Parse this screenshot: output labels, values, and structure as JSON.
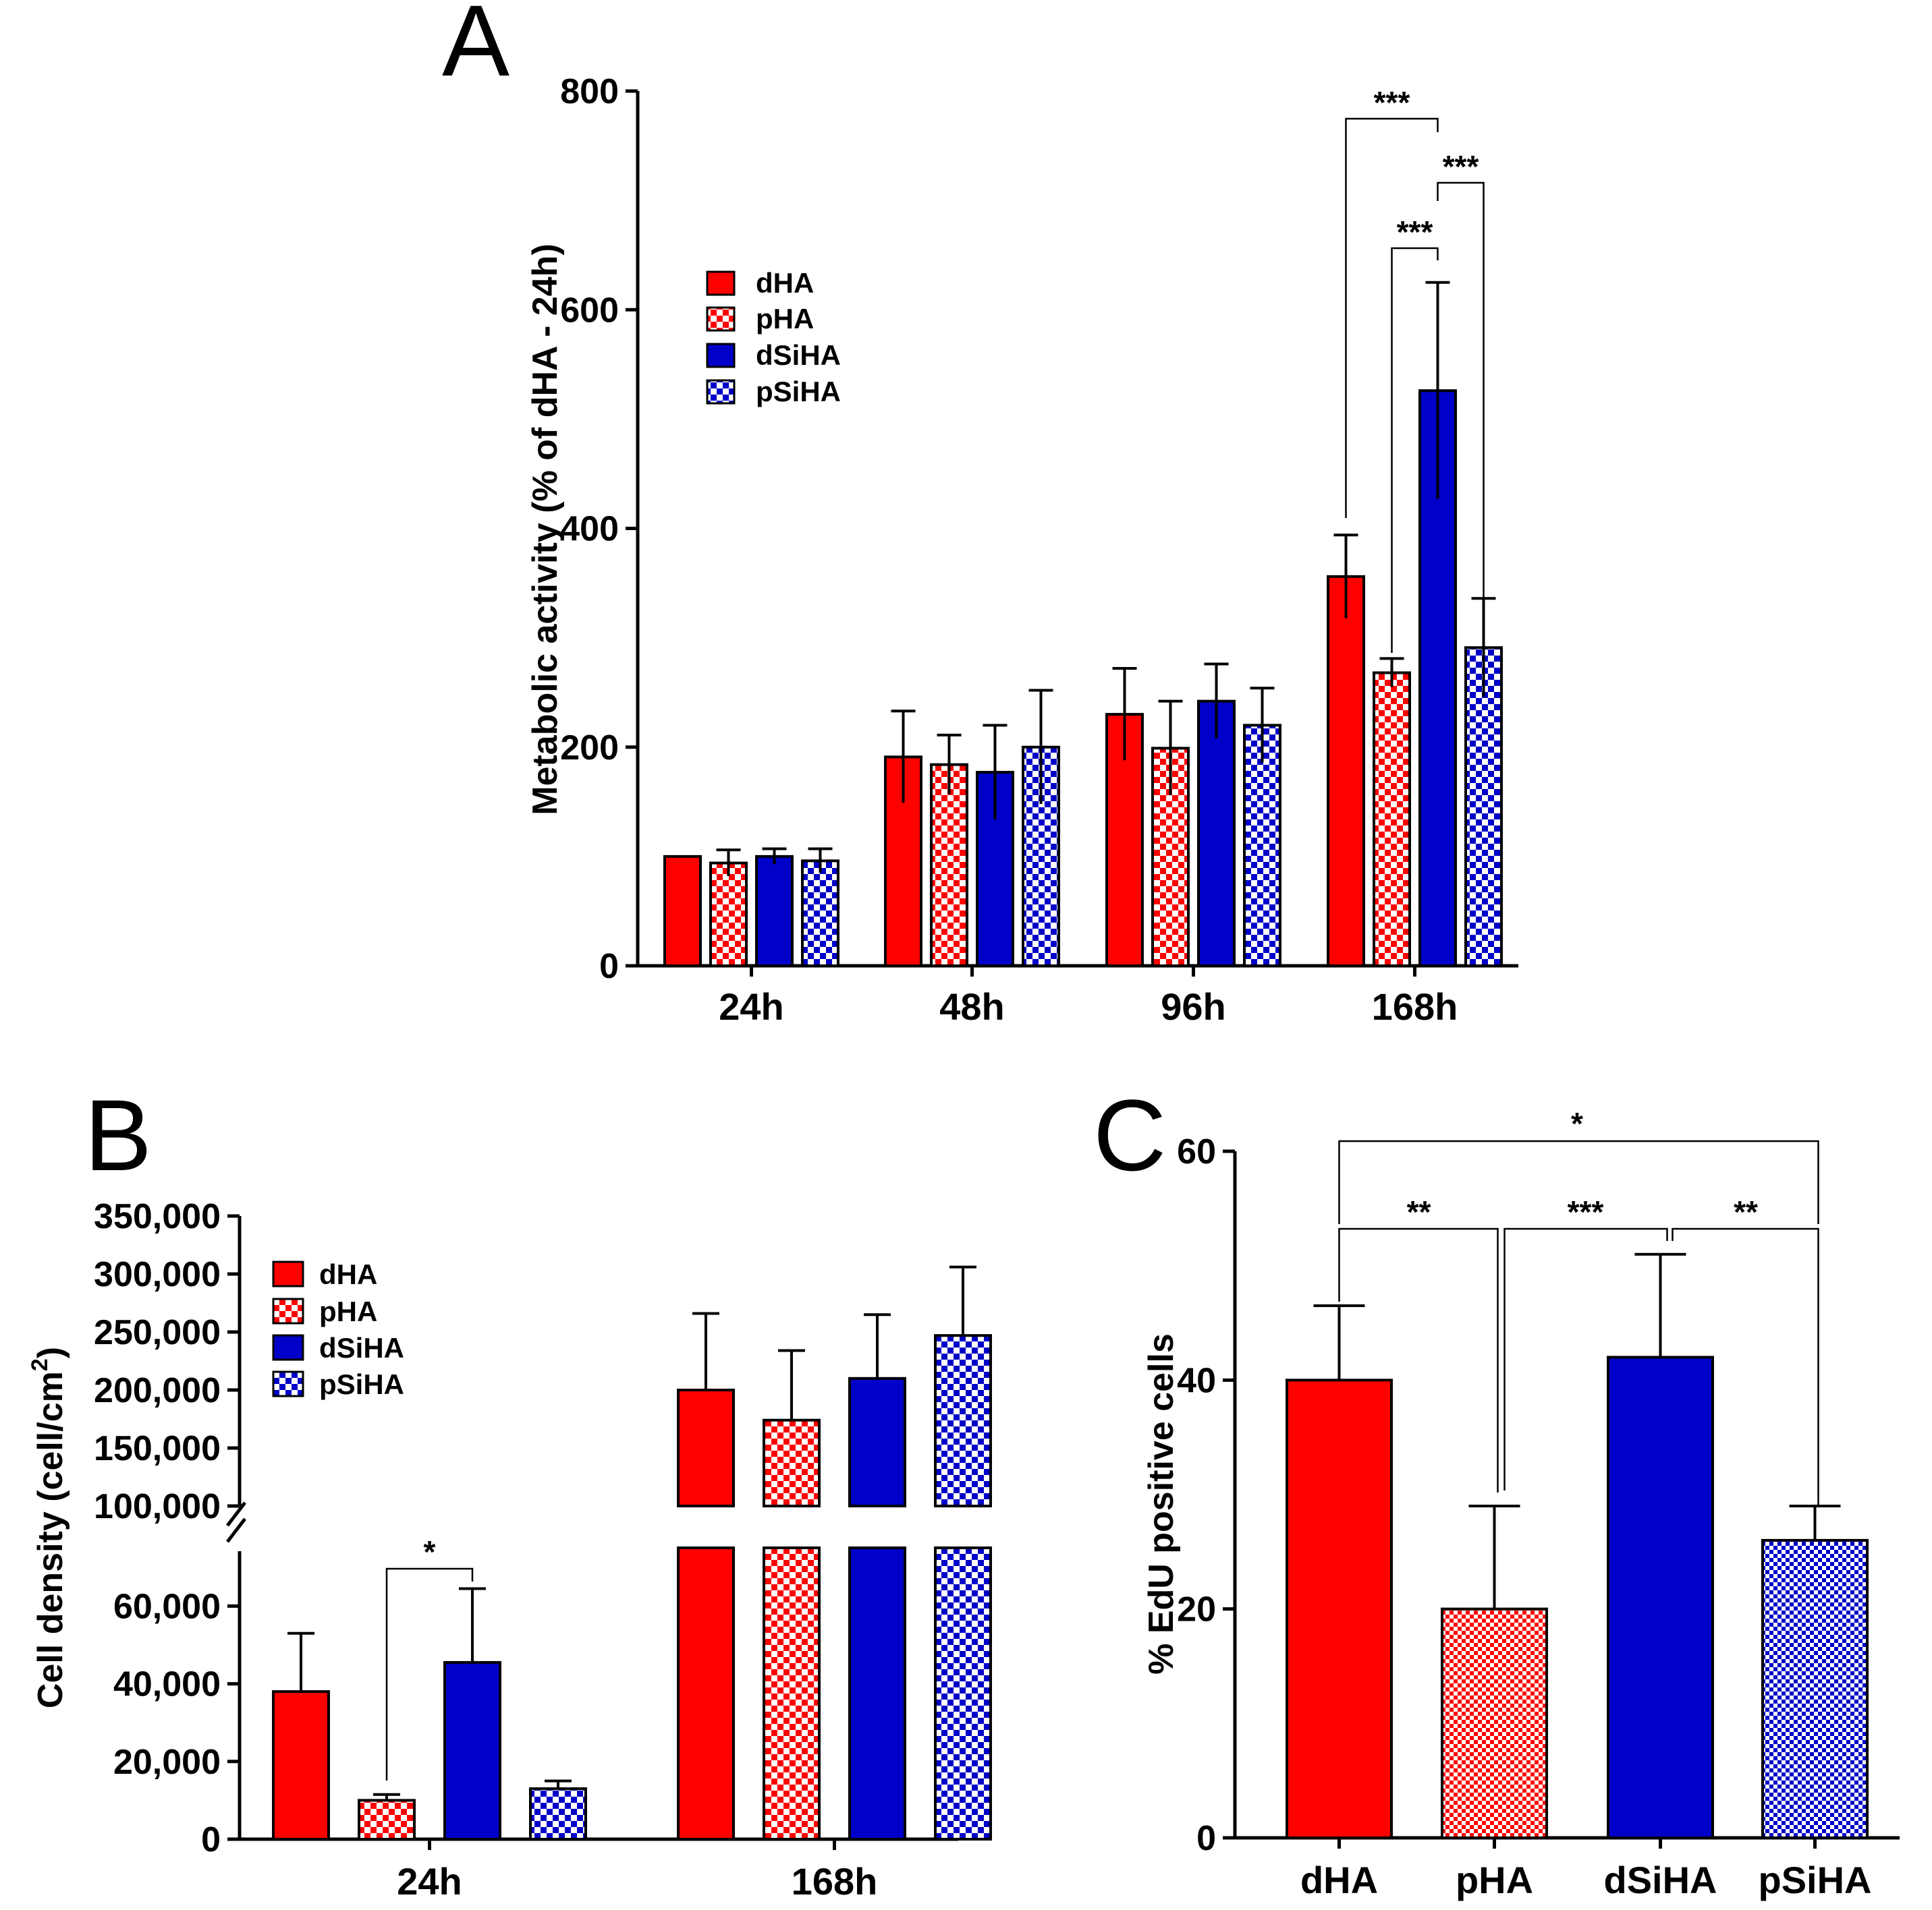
{
  "colors": {
    "dHA": "#ff0000",
    "pHA": "#ff0000",
    "dSiHA": "#0000c8",
    "pSiHA": "#0000c8"
  },
  "patterns": {
    "dHA": "solid",
    "pHA": "checker",
    "dSiHA": "solid",
    "pSiHA": "checker"
  },
  "chart_data": [
    {
      "panel": "A",
      "type": "bar",
      "title": "",
      "xlabel": "",
      "ylabel": "Metabolic activity (% of dHA - 24h)",
      "ylim": [
        0,
        800
      ],
      "yticks": [
        "0",
        "200",
        "400",
        "600",
        "800"
      ],
      "categories": [
        "24h",
        "48h",
        "96h",
        "168h"
      ],
      "legend": {
        "position": "top-left",
        "entries": [
          "dHA",
          "pHA",
          "dSiHA",
          "pSiHA"
        ]
      },
      "series": [
        {
          "name": "dHA",
          "values": [
            100,
            191,
            230,
            356
          ],
          "errors": [
            0,
            42,
            42,
            38
          ]
        },
        {
          "name": "pHA",
          "values": [
            94,
            184,
            199,
            268
          ],
          "errors": [
            12,
            27,
            43,
            13
          ]
        },
        {
          "name": "dSiHA",
          "values": [
            100,
            177,
            242,
            526
          ],
          "errors": [
            7,
            43,
            34,
            99
          ]
        },
        {
          "name": "pSiHA",
          "values": [
            96,
            200,
            220,
            291
          ],
          "errors": [
            11,
            52,
            34,
            45
          ]
        }
      ],
      "annotations": [
        {
          "text": "***",
          "category": "168h",
          "from": "dHA",
          "to": "dSiHA"
        },
        {
          "text": "***",
          "category": "168h",
          "from": "dSiHA",
          "to": "pSiHA"
        },
        {
          "text": "***",
          "category": "168h",
          "from": "pHA",
          "to": "dSiHA"
        }
      ]
    },
    {
      "panel": "B",
      "type": "bar",
      "title": "",
      "xlabel": "",
      "ylabel": "Cell density (cell/cm²)",
      "ylabel_main": "Cell density (cell/cm",
      "ylabel_sup": "2",
      "ylabel_end": ")",
      "ylim": [
        0,
        350000
      ],
      "y_break": [
        75000,
        100000
      ],
      "yticks": [
        "0",
        "20,000",
        "40,000",
        "60,000",
        "100,000",
        "150,000",
        "200,000",
        "250,000",
        "300,000",
        "350,000"
      ],
      "categories": [
        "24h",
        "168h"
      ],
      "legend": {
        "position": "top-left",
        "entries": [
          "dHA",
          "pHA",
          "dSiHA",
          "pSiHA"
        ]
      },
      "series": [
        {
          "name": "dHA",
          "values": [
            38000,
            200000
          ],
          "errors": [
            15000,
            66000
          ]
        },
        {
          "name": "pHA",
          "values": [
            10000,
            174000
          ],
          "errors": [
            1500,
            60000
          ]
        },
        {
          "name": "dSiHA",
          "values": [
            45500,
            210000
          ],
          "errors": [
            19000,
            55000
          ]
        },
        {
          "name": "pSiHA",
          "values": [
            13000,
            247000
          ],
          "errors": [
            2000,
            59000
          ]
        }
      ],
      "annotations": [
        {
          "text": "*",
          "category": "24h",
          "from": "pHA",
          "to": "dSiHA"
        }
      ]
    },
    {
      "panel": "C",
      "type": "bar",
      "title": "",
      "xlabel": "",
      "ylabel": "% EdU positive cells",
      "ylim": [
        0,
        60
      ],
      "yticks": [
        "0",
        "20",
        "40",
        "60"
      ],
      "categories": [
        "dHA",
        "pHA",
        "dSiHA",
        "pSiHA"
      ],
      "series": [
        {
          "name": "",
          "values": [
            40,
            20,
            42,
            26
          ],
          "errors": [
            6.5,
            9,
            9,
            3
          ]
        }
      ],
      "annotations": [
        {
          "text": "**",
          "from": "dHA",
          "to": "pHA"
        },
        {
          "text": "***",
          "from": "pHA",
          "to": "dSiHA"
        },
        {
          "text": "**",
          "from": "dSiHA",
          "to": "pSiHA"
        },
        {
          "text": "*",
          "from": "dHA",
          "to": "pSiHA"
        }
      ]
    }
  ]
}
